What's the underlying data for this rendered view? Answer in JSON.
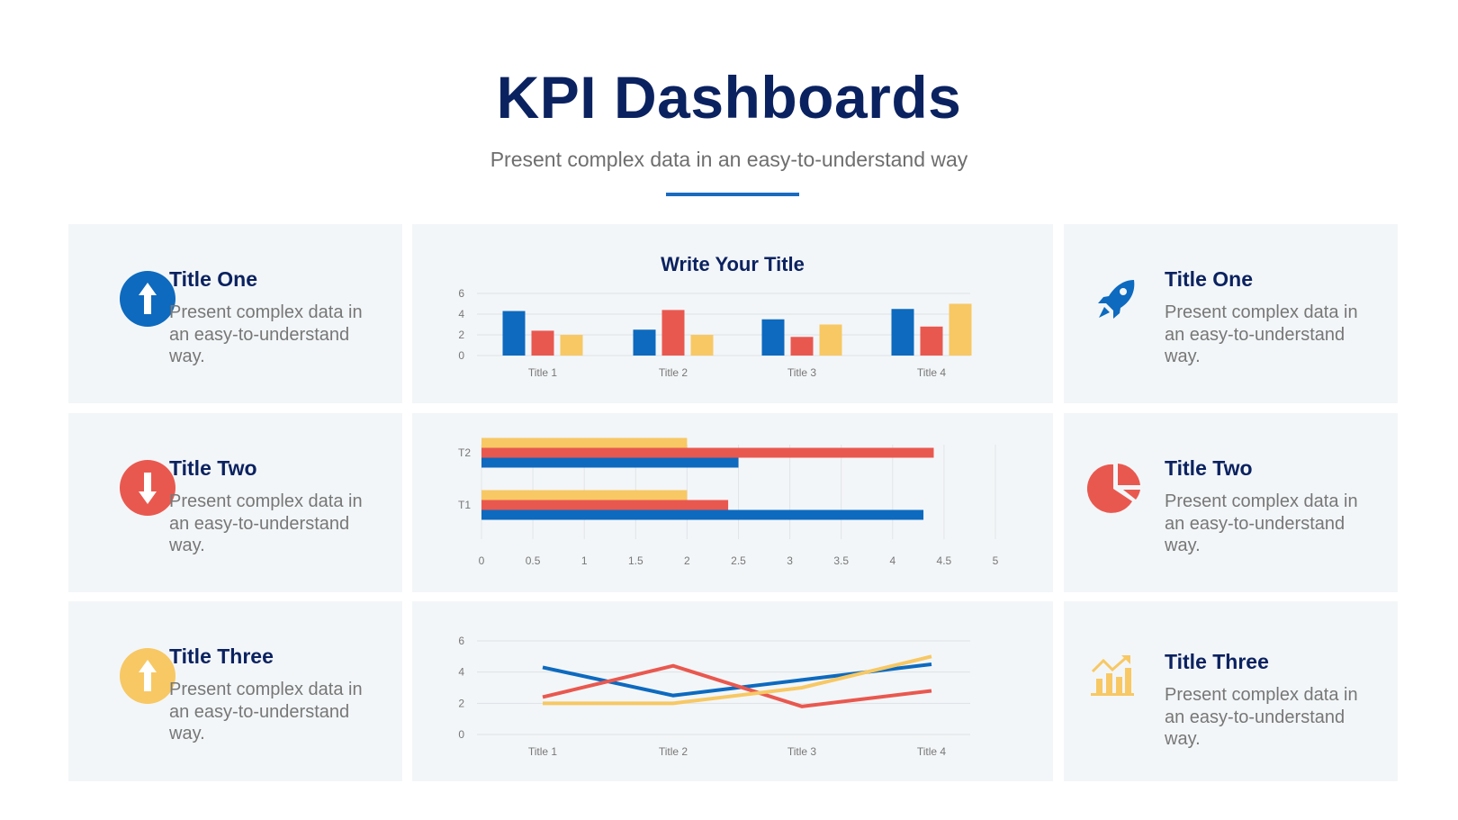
{
  "header": {
    "title": "KPI Dashboards",
    "subtitle": "Present complex data in an easy-to-understand way"
  },
  "colors": {
    "blue": "#0d6abf",
    "red": "#e9584f",
    "yellow": "#f7c864",
    "navy": "#0b2260",
    "card_bg": "#f3f6f8"
  },
  "left_cards": [
    {
      "icon": "arrow-up-circle-icon",
      "color": "#0d6abf",
      "title": "Title One",
      "body": "Present complex data in an easy-to-understand way."
    },
    {
      "icon": "arrow-down-circle-icon",
      "color": "#e9584f",
      "title": "Title Two",
      "body": "Present complex data in an easy-to-understand way."
    },
    {
      "icon": "arrow-up-circle-icon",
      "color": "#f7c864",
      "title": "Title Three",
      "body": "Present complex data in an easy-to-understand way."
    }
  ],
  "right_cards": [
    {
      "icon": "rocket-icon",
      "color": "#0d6abf",
      "title": "Title One",
      "body": "Present complex data in an easy-to-understand way."
    },
    {
      "icon": "pie-chart-icon",
      "color": "#e9584f",
      "title": "Title Two",
      "body": "Present complex data in an easy-to-understand way."
    },
    {
      "icon": "growth-chart-icon",
      "color": "#f7c864",
      "title": "Title Three",
      "body": "Present complex data in an easy-to-understand way."
    }
  ],
  "chart_data": [
    {
      "type": "bar",
      "title": "Write Your Title",
      "categories": [
        "Title 1",
        "Title 2",
        "Title 3",
        "Title 4"
      ],
      "series": [
        {
          "values": [
            4.3,
            2.5,
            3.5,
            4.5
          ],
          "color": "#0d6abf"
        },
        {
          "values": [
            2.4,
            4.4,
            1.8,
            2.8
          ],
          "color": "#e9584f"
        },
        {
          "values": [
            2.0,
            2.0,
            3.0,
            5.0
          ],
          "color": "#f7c864"
        }
      ],
      "yticks": [
        0,
        2,
        4,
        6
      ],
      "ylim": [
        0,
        6
      ],
      "grid": true
    },
    {
      "type": "bar",
      "orientation": "horizontal",
      "title": "",
      "categories": [
        "T2",
        "T1"
      ],
      "series": [
        {
          "values": [
            2.0,
            2.0
          ],
          "color": "#f7c864"
        },
        {
          "values": [
            4.4,
            2.4
          ],
          "color": "#e9584f"
        },
        {
          "values": [
            2.5,
            4.3
          ],
          "color": "#0d6abf"
        }
      ],
      "xticks": [
        "0",
        "0.5",
        "1",
        "1.5",
        "2",
        "2.5",
        "3",
        "3.5",
        "4",
        "4.5",
        "5"
      ],
      "xlim": [
        0,
        5
      ],
      "grid": true
    },
    {
      "type": "line",
      "title": "",
      "categories": [
        "Title 1",
        "Title 2",
        "Title 3",
        "Title 4"
      ],
      "series": [
        {
          "values": [
            4.3,
            2.5,
            3.5,
            4.5
          ],
          "color": "#0d6abf"
        },
        {
          "values": [
            2.4,
            4.4,
            1.8,
            2.8
          ],
          "color": "#e9584f"
        },
        {
          "values": [
            2.0,
            2.0,
            3.0,
            5.0
          ],
          "color": "#f7c864"
        }
      ],
      "yticks": [
        0,
        2,
        4,
        6
      ],
      "ylim": [
        0,
        6
      ],
      "grid": true
    }
  ]
}
